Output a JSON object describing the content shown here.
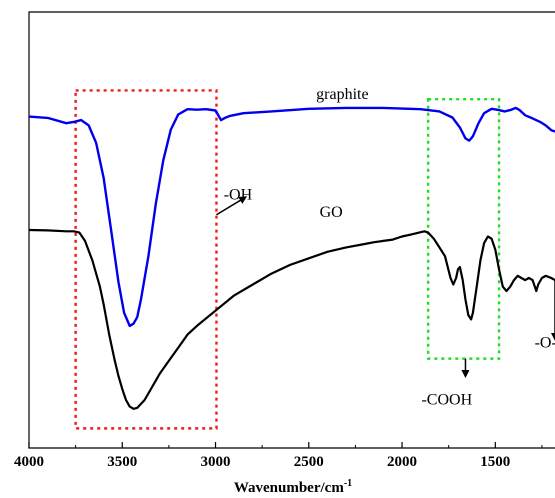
{
  "chart_data": {
    "type": "line",
    "title": "",
    "xlabel": "Wavenumber/cm",
    "xlabel_superscript": "-1",
    "ylabel": "",
    "xlim": [
      4000,
      1180
    ],
    "x_reversed": true,
    "x_ticks": [
      4000,
      3500,
      3000,
      2500,
      2000,
      1500
    ],
    "x_tick_labels": [
      "4000",
      "3500",
      "3000",
      "2500",
      "2000",
      "1500"
    ],
    "y_ticks_shown": false,
    "grid": false,
    "series": [
      {
        "name": "graphite",
        "color": "#0000ee",
        "points": [
          [
            4000,
            0.76
          ],
          [
            3900,
            0.757
          ],
          [
            3800,
            0.745
          ],
          [
            3760,
            0.748
          ],
          [
            3720,
            0.752
          ],
          [
            3680,
            0.74
          ],
          [
            3640,
            0.7
          ],
          [
            3600,
            0.62
          ],
          [
            3560,
            0.5
          ],
          [
            3520,
            0.38
          ],
          [
            3490,
            0.31
          ],
          [
            3460,
            0.28
          ],
          [
            3440,
            0.285
          ],
          [
            3420,
            0.3
          ],
          [
            3400,
            0.34
          ],
          [
            3360,
            0.44
          ],
          [
            3320,
            0.56
          ],
          [
            3280,
            0.66
          ],
          [
            3240,
            0.73
          ],
          [
            3200,
            0.765
          ],
          [
            3150,
            0.777
          ],
          [
            3100,
            0.776
          ],
          [
            3050,
            0.777
          ],
          [
            3000,
            0.774
          ],
          [
            2970,
            0.752
          ],
          [
            2950,
            0.757
          ],
          [
            2920,
            0.762
          ],
          [
            2850,
            0.768
          ],
          [
            2700,
            0.772
          ],
          [
            2500,
            0.778
          ],
          [
            2300,
            0.78
          ],
          [
            2100,
            0.78
          ],
          [
            1900,
            0.777
          ],
          [
            1800,
            0.772
          ],
          [
            1730,
            0.758
          ],
          [
            1690,
            0.735
          ],
          [
            1660,
            0.71
          ],
          [
            1640,
            0.705
          ],
          [
            1620,
            0.715
          ],
          [
            1590,
            0.745
          ],
          [
            1560,
            0.768
          ],
          [
            1520,
            0.778
          ],
          [
            1480,
            0.775
          ],
          [
            1450,
            0.772
          ],
          [
            1420,
            0.775
          ],
          [
            1390,
            0.78
          ],
          [
            1370,
            0.775
          ],
          [
            1340,
            0.763
          ],
          [
            1300,
            0.756
          ],
          [
            1260,
            0.748
          ],
          [
            1230,
            0.74
          ],
          [
            1200,
            0.729
          ],
          [
            1180,
            0.726
          ]
        ]
      },
      {
        "name": "GO",
        "color": "#000000",
        "points": [
          [
            4000,
            0.5
          ],
          [
            3900,
            0.499
          ],
          [
            3800,
            0.497
          ],
          [
            3760,
            0.497
          ],
          [
            3730,
            0.494
          ],
          [
            3700,
            0.475
          ],
          [
            3660,
            0.43
          ],
          [
            3620,
            0.37
          ],
          [
            3600,
            0.33
          ],
          [
            3570,
            0.26
          ],
          [
            3540,
            0.2
          ],
          [
            3520,
            0.165
          ],
          [
            3500,
            0.135
          ],
          [
            3480,
            0.11
          ],
          [
            3460,
            0.095
          ],
          [
            3440,
            0.09
          ],
          [
            3420,
            0.092
          ],
          [
            3380,
            0.11
          ],
          [
            3340,
            0.14
          ],
          [
            3300,
            0.17
          ],
          [
            3250,
            0.2
          ],
          [
            3200,
            0.23
          ],
          [
            3150,
            0.26
          ],
          [
            3100,
            0.28
          ],
          [
            3000,
            0.315
          ],
          [
            2900,
            0.35
          ],
          [
            2800,
            0.375
          ],
          [
            2700,
            0.4
          ],
          [
            2600,
            0.42
          ],
          [
            2500,
            0.435
          ],
          [
            2400,
            0.45
          ],
          [
            2300,
            0.46
          ],
          [
            2200,
            0.468
          ],
          [
            2150,
            0.472
          ],
          [
            2100,
            0.475
          ],
          [
            2050,
            0.478
          ],
          [
            2000,
            0.485
          ],
          [
            1950,
            0.49
          ],
          [
            1900,
            0.495
          ],
          [
            1880,
            0.497
          ],
          [
            1860,
            0.494
          ],
          [
            1830,
            0.48
          ],
          [
            1800,
            0.46
          ],
          [
            1770,
            0.44
          ],
          [
            1740,
            0.39
          ],
          [
            1725,
            0.375
          ],
          [
            1710,
            0.39
          ],
          [
            1700,
            0.41
          ],
          [
            1690,
            0.415
          ],
          [
            1675,
            0.385
          ],
          [
            1660,
            0.34
          ],
          [
            1645,
            0.305
          ],
          [
            1630,
            0.295
          ],
          [
            1620,
            0.31
          ],
          [
            1600,
            0.37
          ],
          [
            1580,
            0.43
          ],
          [
            1560,
            0.47
          ],
          [
            1540,
            0.485
          ],
          [
            1520,
            0.48
          ],
          [
            1500,
            0.455
          ],
          [
            1480,
            0.41
          ],
          [
            1460,
            0.37
          ],
          [
            1440,
            0.36
          ],
          [
            1420,
            0.37
          ],
          [
            1400,
            0.385
          ],
          [
            1380,
            0.395
          ],
          [
            1360,
            0.39
          ],
          [
            1340,
            0.385
          ],
          [
            1320,
            0.39
          ],
          [
            1300,
            0.385
          ],
          [
            1280,
            0.36
          ],
          [
            1270,
            0.375
          ],
          [
            1250,
            0.39
          ],
          [
            1230,
            0.395
          ],
          [
            1200,
            0.39
          ],
          [
            1180,
            0.385
          ]
        ]
      }
    ],
    "annotations": [
      {
        "text": "graphite",
        "x": 2320,
        "y": 0.8
      },
      {
        "text": "GO",
        "x": 2380,
        "y": 0.53
      },
      {
        "text": "-OH",
        "x": 2880,
        "y": 0.57
      },
      {
        "text": "-COOH",
        "x": 1760,
        "y": 0.1
      },
      {
        "text": "-O-",
        "x": 1230,
        "y": 0.23
      }
    ],
    "highlight_boxes": [
      {
        "name": "oh-region-box",
        "color": "#ee1c1c",
        "x": [
          3750,
          2995
        ],
        "y": [
          0.045,
          0.82
        ]
      },
      {
        "name": "cooh-region-box",
        "color": "#22dd22",
        "x": [
          1860,
          1480
        ],
        "y": [
          0.205,
          0.8
        ]
      }
    ],
    "arrows": [
      {
        "name": "oh-arrow",
        "from": [
          2995,
          0.535
        ],
        "to": [
          2840,
          0.575
        ]
      },
      {
        "name": "cooh-arrow",
        "from": [
          1660,
          0.205
        ],
        "to": [
          1660,
          0.165
        ]
      },
      {
        "name": "ether-arrow",
        "from": [
          1180,
          0.385
        ],
        "to": [
          1180,
          0.25
        ]
      }
    ]
  }
}
